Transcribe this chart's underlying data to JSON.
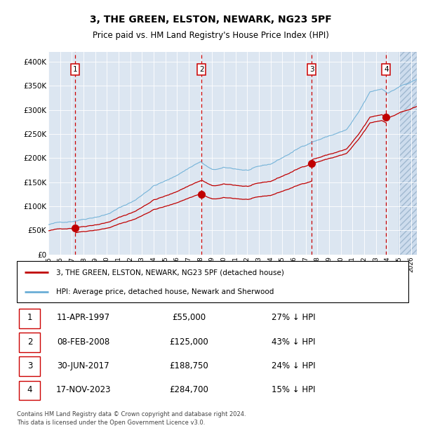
{
  "title": "3, THE GREEN, ELSTON, NEWARK, NG23 5PF",
  "subtitle": "Price paid vs. HM Land Registry's House Price Index (HPI)",
  "footnote": "Contains HM Land Registry data © Crown copyright and database right 2024.\nThis data is licensed under the Open Government Licence v3.0.",
  "legend_line1": "3, THE GREEN, ELSTON, NEWARK, NG23 5PF (detached house)",
  "legend_line2": "HPI: Average price, detached house, Newark and Sherwood",
  "sales": [
    {
      "num": 1,
      "date_label": "11-APR-1997",
      "price_label": "£55,000",
      "pct_label": "27% ↓ HPI",
      "year": 1997.27,
      "price": 55000
    },
    {
      "num": 2,
      "date_label": "08-FEB-2008",
      "price_label": "£125,000",
      "pct_label": "43% ↓ HPI",
      "year": 2008.1,
      "price": 125000
    },
    {
      "num": 3,
      "date_label": "30-JUN-2017",
      "price_label": "£188,750",
      "pct_label": "24% ↓ HPI",
      "year": 2017.5,
      "price": 188750
    },
    {
      "num": 4,
      "date_label": "17-NOV-2023",
      "price_label": "£284,700",
      "pct_label": "15% ↓ HPI",
      "year": 2023.88,
      "price": 284700
    }
  ],
  "hpi_color": "#6aaed6",
  "sale_color": "#c00000",
  "plot_bg": "#dce6f1",
  "ylim": [
    0,
    420000
  ],
  "xlim_start": 1995.0,
  "xlim_end": 2026.5,
  "hatch_start": 2025.0,
  "yticks": [
    0,
    50000,
    100000,
    150000,
    200000,
    250000,
    300000,
    350000,
    400000
  ],
  "ytick_labels": [
    "£0",
    "£50K",
    "£100K",
    "£150K",
    "£200K",
    "£250K",
    "£300K",
    "£350K",
    "£400K"
  ]
}
